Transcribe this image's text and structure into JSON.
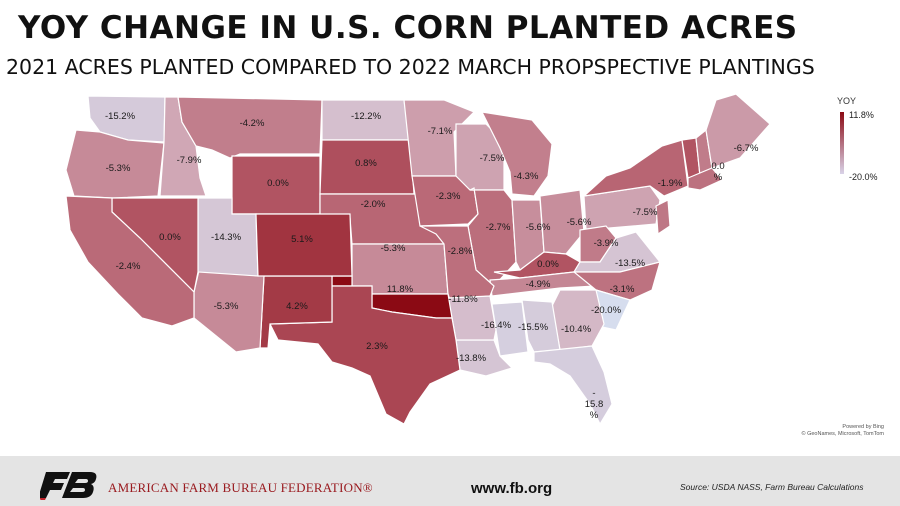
{
  "title": "YOY CHANGE IN U.S. CORN PLANTED ACRES",
  "subtitle": "2021 ACRES PLANTED COMPARED TO 2022 MARCH PROPSPECTIVE PLANTINGS",
  "legend": {
    "title": "YOY",
    "max_label": "11.8%",
    "min_label": "-20.0%",
    "max_color": "#8b0a14",
    "min_color": "#d9d3e8"
  },
  "map_credit": {
    "line1": "Powered by Bing",
    "line2": "© GeoNames, Microsoft, TomTom"
  },
  "footer": {
    "organization": "AMERICAN FARM BUREAU FEDERATION®",
    "url": "www.fb.org",
    "source": "Source: USDA NASS, Farm Bureau Calculations",
    "logo_icon": "fb-logo-icon"
  },
  "states": [
    {
      "state": "WA",
      "label": "-15.2%",
      "value": -15.2
    },
    {
      "state": "OR",
      "label": "-5.3%",
      "value": -5.3
    },
    {
      "state": "ID",
      "label": "-7.9%",
      "value": -7.9
    },
    {
      "state": "MT",
      "label": "-4.2%",
      "value": -4.2
    },
    {
      "state": "ND",
      "label": "-12.2%",
      "value": -12.2
    },
    {
      "state": "MN",
      "label": "-7.1%",
      "value": -7.1
    },
    {
      "state": "WI",
      "label": "-7.5%",
      "value": -7.5
    },
    {
      "state": "MI",
      "label": "-4.3%",
      "value": -4.3
    },
    {
      "state": "NY",
      "label": "-1.9%",
      "value": -1.9
    },
    {
      "state": "VT",
      "label": "0.0%",
      "value": 0.0
    },
    {
      "state": "ME",
      "label": "-6.7%",
      "value": -6.7
    },
    {
      "state": "SD",
      "label": "0.8%",
      "value": 0.8
    },
    {
      "state": "WY",
      "label": "0.0%",
      "value": 0.0
    },
    {
      "state": "NE",
      "label": "-2.0%",
      "value": -2.0
    },
    {
      "state": "IA",
      "label": "-2.3%",
      "value": -2.3
    },
    {
      "state": "NV",
      "label": "0.0%",
      "value": 0.0
    },
    {
      "state": "UT",
      "label": "-14.3%",
      "value": -14.3
    },
    {
      "state": "CO",
      "label": "5.1%",
      "value": 5.1
    },
    {
      "state": "KS",
      "label": "-5.3%",
      "value": -5.3
    },
    {
      "state": "IL",
      "label": "-2.7%",
      "value": -2.7
    },
    {
      "state": "IN",
      "label": "-5.6%",
      "value": -5.6
    },
    {
      "state": "OH",
      "label": "-5.6%",
      "value": -5.6
    },
    {
      "state": "PA",
      "label": "-7.5%",
      "value": -7.5
    },
    {
      "state": "CA",
      "label": "-2.4%",
      "value": -2.4
    },
    {
      "state": "MO",
      "label": "-2.8%",
      "value": -2.8
    },
    {
      "state": "KY",
      "label": "0.0%",
      "value": 0.0
    },
    {
      "state": "WV",
      "label": "-3.9%",
      "value": -3.9
    },
    {
      "state": "VA",
      "label": "-13.5%",
      "value": -13.5
    },
    {
      "state": "OK",
      "label": "11.8%",
      "value": 11.8
    },
    {
      "state": "AZ",
      "label": "-5.3%",
      "value": -5.3
    },
    {
      "state": "NM",
      "label": "4.2%",
      "value": 4.2
    },
    {
      "state": "AR",
      "label": "-11.8%",
      "value": -11.8
    },
    {
      "state": "TN",
      "label": "-4.9%",
      "value": -4.9
    },
    {
      "state": "NC",
      "label": "-3.1%",
      "value": -3.1
    },
    {
      "state": "SC",
      "label": "-20.0%",
      "value": -20.0
    },
    {
      "state": "MS",
      "label": "-16.4%",
      "value": -16.4
    },
    {
      "state": "AL",
      "label": "-15.5%",
      "value": -15.5
    },
    {
      "state": "GA",
      "label": "-10.4%",
      "value": -10.4
    },
    {
      "state": "TX",
      "label": "2.3%",
      "value": 2.3
    },
    {
      "state": "LA",
      "label": "-13.8%",
      "value": -13.8
    },
    {
      "state": "FL",
      "label": "-15.8%",
      "value": -15.8
    }
  ]
}
